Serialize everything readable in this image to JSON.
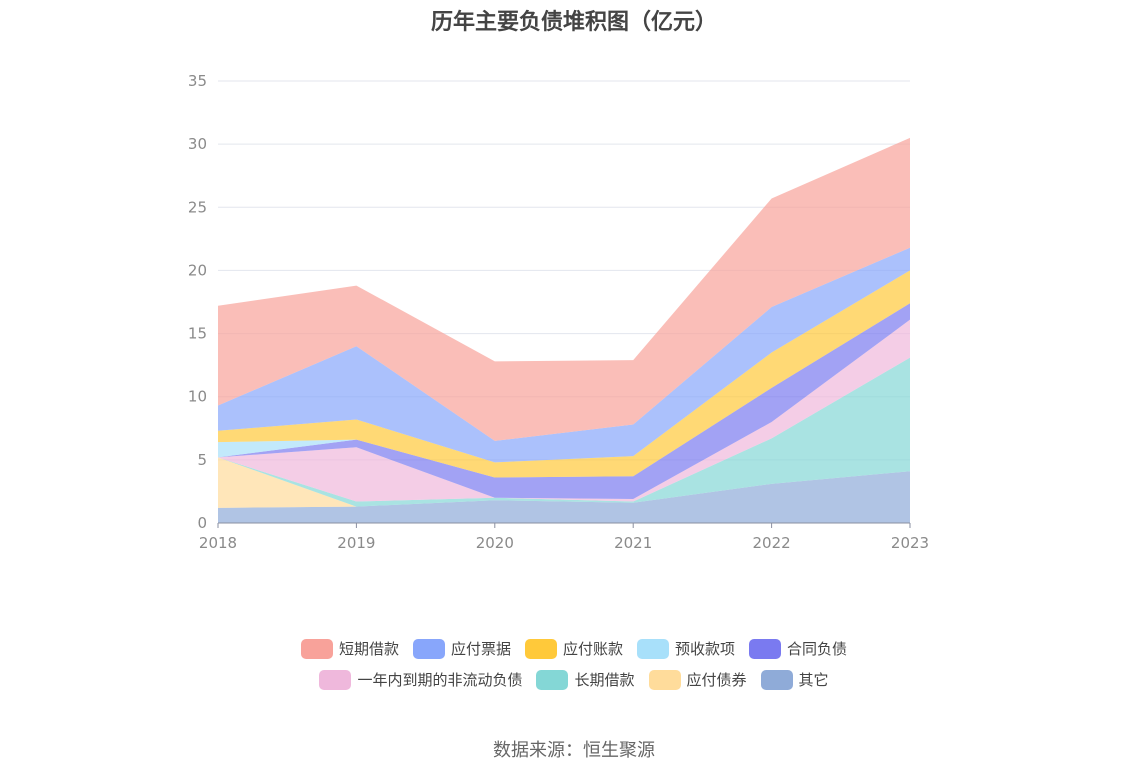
{
  "chart_data": {
    "type": "area",
    "stacked": true,
    "title": "历年主要负债堆积图（亿元）",
    "x": [
      "2018",
      "2019",
      "2020",
      "2021",
      "2022",
      "2023"
    ],
    "ylim": [
      0,
      35
    ],
    "yticks": [
      "0",
      "5",
      "10",
      "15",
      "20",
      "25",
      "30",
      "35"
    ],
    "grid": true,
    "legend_position": "bottom",
    "series": [
      {
        "name": "其它",
        "color": "#8fabd8",
        "values": [
          1.2,
          1.3,
          1.8,
          1.6,
          3.1,
          4.1
        ]
      },
      {
        "name": "应付债券",
        "color": "#ffdc9b",
        "values": [
          4.0,
          0.0,
          0.0,
          0.0,
          0.0,
          0.0
        ]
      },
      {
        "name": "长期借款",
        "color": "#84d7d6",
        "values": [
          0.0,
          0.4,
          0.2,
          0.1,
          3.6,
          9.0
        ]
      },
      {
        "name": "一年内到期的非流动负债",
        "color": "#efb8dc",
        "values": [
          0.0,
          4.3,
          0.0,
          0.2,
          1.3,
          3.0
        ]
      },
      {
        "name": "合同负债",
        "color": "#7a7af0",
        "values": [
          0.0,
          0.6,
          1.6,
          1.8,
          2.7,
          1.3
        ]
      },
      {
        "name": "预收款项",
        "color": "#a8e0fa",
        "values": [
          1.2,
          0.0,
          0.0,
          0.0,
          0.0,
          0.0
        ]
      },
      {
        "name": "应付账款",
        "color": "#ffc93a",
        "values": [
          0.9,
          1.6,
          1.2,
          1.6,
          2.8,
          2.6
        ]
      },
      {
        "name": "应付票据",
        "color": "#88a6fb",
        "values": [
          2.0,
          5.8,
          1.7,
          2.5,
          3.6,
          1.8
        ]
      },
      {
        "name": "短期借款",
        "color": "#f8a29a",
        "values": [
          7.9,
          4.8,
          6.3,
          5.1,
          8.6,
          8.7
        ]
      }
    ],
    "legend_rows": [
      [
        "短期借款",
        "应付票据",
        "应付账款",
        "预收款项",
        "合同负债"
      ],
      [
        "一年内到期的非流动负债",
        "长期借款",
        "应付债券",
        "其它"
      ]
    ]
  },
  "footer": {
    "source": "数据来源：恒生聚源"
  }
}
